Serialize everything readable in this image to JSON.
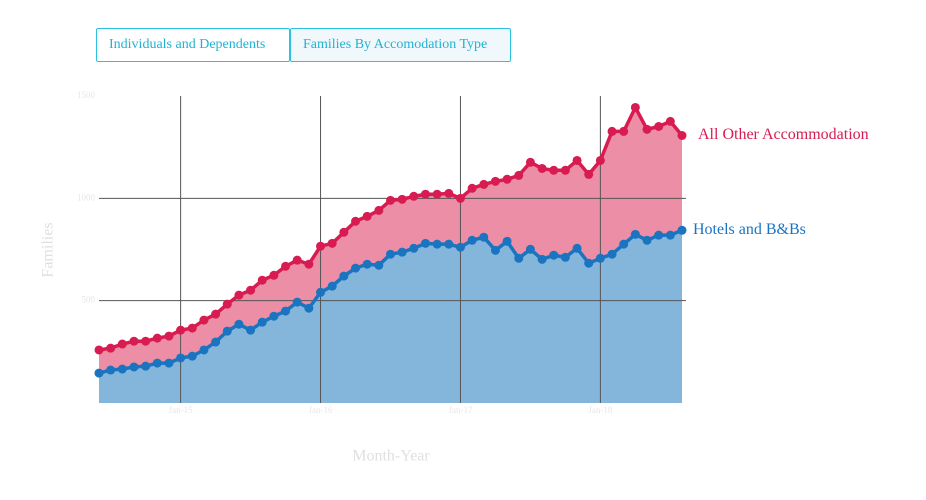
{
  "tabs": [
    "Individuals and Dependents",
    "Families By Accomodation Type"
  ],
  "chart_data": {
    "type": "stacked-area",
    "x_label": "Month-Year",
    "y_label": "Families",
    "categories": [
      null,
      null,
      null,
      null,
      null,
      null,
      null,
      "Jan-15",
      null,
      null,
      null,
      null,
      null,
      null,
      null,
      null,
      null,
      null,
      null,
      "Jan-16",
      null,
      null,
      null,
      null,
      null,
      null,
      null,
      null,
      null,
      null,
      null,
      "Jan-17",
      null,
      null,
      null,
      null,
      null,
      null,
      null,
      null,
      null,
      null,
      null,
      "Jan-18",
      null,
      null,
      null,
      null,
      null,
      null,
      null
    ],
    "series": [
      {
        "name": "Hotels and B&Bs",
        "color": "#1a74c0",
        "fill": "#84b6dc",
        "values": [
          146,
          161,
          166,
          176,
          180,
          195,
          195,
          220,
          229,
          259,
          298,
          351,
          385,
          356,
          395,
          424,
          449,
          493,
          463,
          541,
          571,
          620,
          659,
          678,
          673,
          727,
          737,
          756,
          780,
          776,
          776,
          761,
          795,
          810,
          746,
          790,
          707,
          751,
          702,
          722,
          712,
          756,
          683,
          707,
          727,
          776,
          824,
          795,
          820,
          820,
          844
        ]
      },
      {
        "name": "All Other Accommodation",
        "color": "#d81b50",
        "fill": "#ec8fa6",
        "values": [
          113,
          107,
          122,
          126,
          122,
          122,
          132,
          136,
          137,
          146,
          136,
          132,
          142,
          195,
          205,
          200,
          219,
          205,
          215,
          225,
          209,
          214,
          229,
          234,
          268,
          263,
          258,
          254,
          240,
          244,
          248,
          239,
          254,
          258,
          337,
          303,
          405,
          425,
          444,
          415,
          425,
          429,
          434,
          478,
          600,
          551,
          620,
          542,
          531,
          556,
          463
        ]
      }
    ],
    "ylim": [
      0,
      1500
    ],
    "yticks": [
      500,
      1000,
      1500
    ],
    "grid": true
  }
}
